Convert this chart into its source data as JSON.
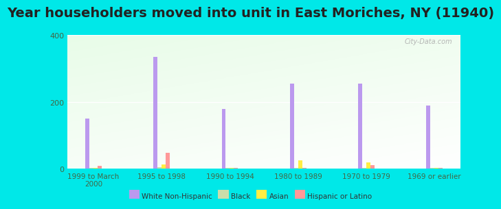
{
  "title": "Year householders moved into unit in East Moriches, NY (11940)",
  "categories": [
    "1999 to March\n2000",
    "1995 to 1998",
    "1990 to 1994",
    "1980 to 1989",
    "1970 to 1979",
    "1969 or earlier"
  ],
  "white_non_hispanic": [
    150,
    335,
    178,
    255,
    255,
    190
  ],
  "black": [
    3,
    5,
    3,
    3,
    3,
    3
  ],
  "asian": [
    3,
    12,
    3,
    25,
    18,
    3
  ],
  "hispanic": [
    8,
    48,
    3,
    3,
    10,
    3
  ],
  "colors": {
    "white_non_hispanic": "#bb99ee",
    "black": "#ccddaa",
    "asian": "#ffee44",
    "hispanic": "#ff9999"
  },
  "legend_labels": [
    "White Non-Hispanic",
    "Black",
    "Asian",
    "Hispanic or Latino"
  ],
  "ylim": [
    0,
    400
  ],
  "yticks": [
    0,
    200,
    400
  ],
  "background_outer": "#00e8e8",
  "watermark": "City-Data.com",
  "title_fontsize": 14,
  "bar_width": 0.06
}
